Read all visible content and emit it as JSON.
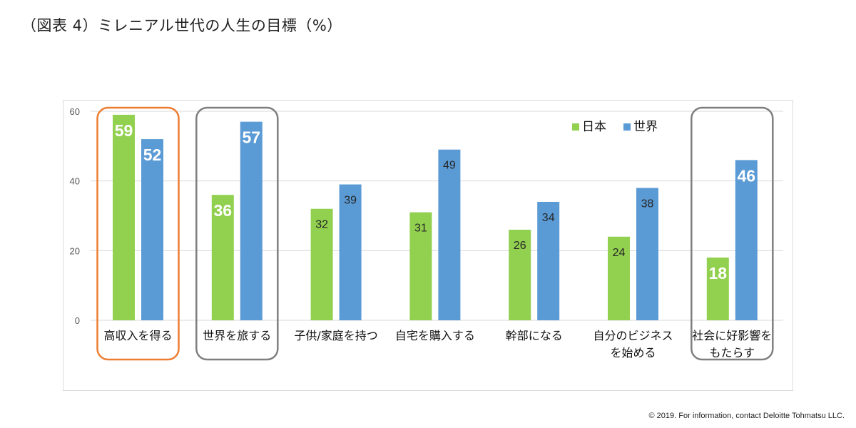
{
  "title": "（図表 4）ミレニアル世代の人生の目標（%）",
  "copyright": "© 2019. For information, contact Deloitte Tohmatsu LLC.",
  "colors": {
    "japan": "#92d050",
    "world": "#5b9bd5",
    "highlight_orange": "#ed7d31",
    "highlight_gray": "#7f7f7f",
    "grid": "#d9d9d9"
  },
  "chart_data": {
    "type": "bar",
    "title": "",
    "xlabel": "",
    "ylabel": "",
    "ylim": [
      0,
      60
    ],
    "yticks": [
      "0",
      "20",
      "40",
      "60"
    ],
    "grid": true,
    "legend_position": "top-right",
    "categories": [
      [
        "高収入を得る"
      ],
      [
        "世界を旅する"
      ],
      [
        "子供/家庭を持つ"
      ],
      [
        "自宅を購入する"
      ],
      [
        "幹部になる"
      ],
      [
        "自分のビジネス",
        "を始める"
      ],
      [
        "社会に好影響を",
        "もたらす"
      ]
    ],
    "series": [
      {
        "name": "日本",
        "color": "#92d050",
        "values": [
          59,
          36,
          32,
          31,
          26,
          24,
          18
        ]
      },
      {
        "name": "世界",
        "color": "#5b9bd5",
        "values": [
          52,
          57,
          39,
          49,
          34,
          38,
          46
        ]
      }
    ],
    "emphasized_labels": [
      0,
      1,
      6
    ],
    "highlight_boxes": [
      {
        "category_index": 0,
        "color": "orange"
      },
      {
        "category_index": 1,
        "color": "gray"
      },
      {
        "category_index": 6,
        "color": "gray"
      }
    ]
  }
}
